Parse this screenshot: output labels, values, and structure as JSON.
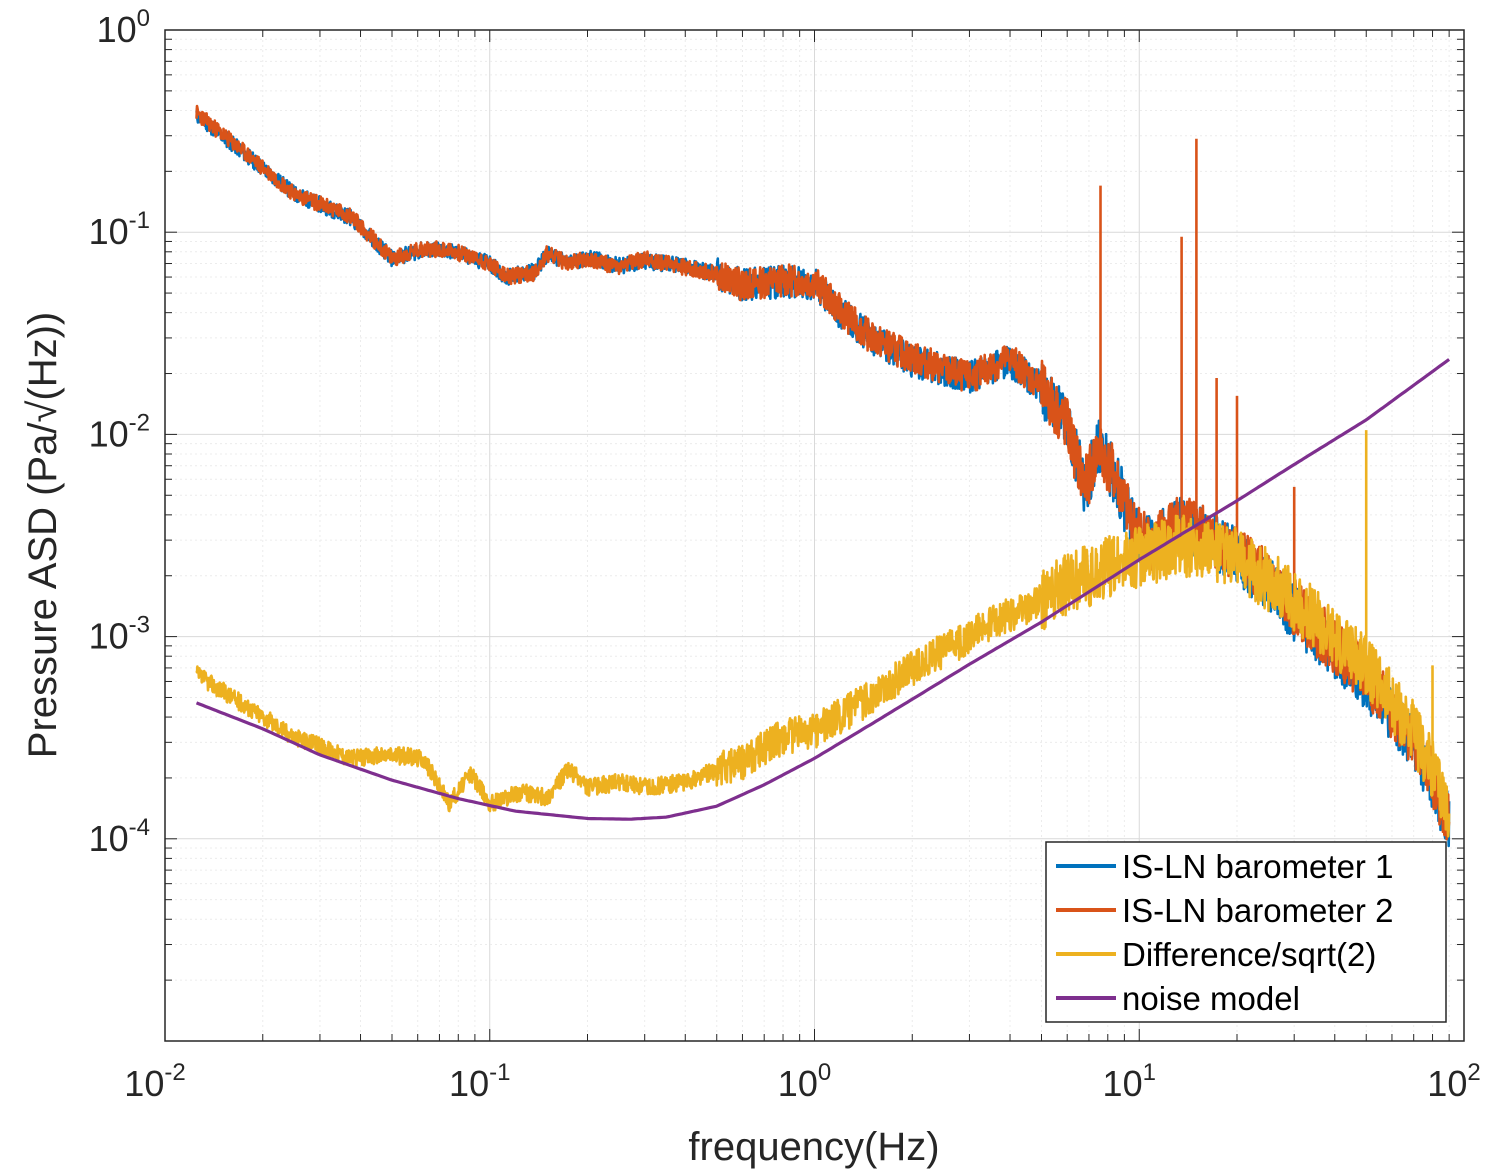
{
  "chart_data": {
    "type": "line",
    "title": "",
    "xlabel": "frequency(Hz)",
    "ylabel": "Pressure ASD (Pa/√(Hz))",
    "xscale": "log",
    "yscale": "log",
    "xlim": [
      0.01,
      100
    ],
    "ylim": [
      1e-05,
      1
    ],
    "grid": true,
    "minor_grid": true,
    "legend_position": "bottom-right",
    "x_ticks": [
      {
        "base": "10",
        "exp": "-2"
      },
      {
        "base": "10",
        "exp": "-1"
      },
      {
        "base": "10",
        "exp": "0"
      },
      {
        "base": "10",
        "exp": "1"
      },
      {
        "base": "10",
        "exp": "2"
      }
    ],
    "y_ticks": [
      {
        "value": 0.0001,
        "base": "10",
        "exp": "-4"
      },
      {
        "value": 0.001,
        "base": "10",
        "exp": "-3"
      },
      {
        "value": 0.01,
        "base": "10",
        "exp": "-2"
      },
      {
        "value": 0.1,
        "base": "10",
        "exp": "-1"
      },
      {
        "value": 1,
        "base": "10",
        "exp": "0"
      }
    ],
    "series": [
      {
        "name": "IS-LN barometer 1",
        "color": "#0072BD",
        "points": [
          [
            0.0125,
            0.38
          ],
          [
            0.025,
            0.155
          ],
          [
            0.0375,
            0.118
          ],
          [
            0.05,
            0.074
          ],
          [
            0.0625,
            0.082
          ],
          [
            0.075,
            0.081
          ],
          [
            0.1,
            0.07
          ],
          [
            0.1125,
            0.06
          ],
          [
            0.1375,
            0.064
          ],
          [
            0.15,
            0.078
          ],
          [
            0.175,
            0.07
          ],
          [
            0.2,
            0.075
          ],
          [
            0.25,
            0.068
          ],
          [
            0.3,
            0.072
          ],
          [
            0.4,
            0.068
          ],
          [
            0.5,
            0.062
          ],
          [
            0.6,
            0.055
          ],
          [
            0.8,
            0.057
          ],
          [
            1.0,
            0.056
          ],
          [
            1.2,
            0.04
          ],
          [
            1.5,
            0.03
          ],
          [
            2.0,
            0.023
          ],
          [
            2.5,
            0.021
          ],
          [
            3.0,
            0.019
          ],
          [
            4.0,
            0.023
          ],
          [
            5.0,
            0.017
          ],
          [
            6.0,
            0.011
          ],
          [
            6.8,
            0.0055
          ],
          [
            7.5,
            0.0085
          ],
          [
            8.5,
            0.006
          ],
          [
            9.5,
            0.0035
          ],
          [
            11,
            0.0028
          ],
          [
            13,
            0.0036
          ],
          [
            15,
            0.0033
          ],
          [
            20,
            0.0025
          ],
          [
            25,
            0.0018
          ],
          [
            30,
            0.0013
          ],
          [
            40,
            0.00085
          ],
          [
            50,
            0.0006
          ],
          [
            60,
            0.00042
          ],
          [
            70,
            0.0003
          ],
          [
            80,
            0.00019
          ],
          [
            90,
            0.00012
          ]
        ]
      },
      {
        "name": "IS-LN barometer 2",
        "color": "#D95319",
        "points": [
          [
            0.0125,
            0.39
          ],
          [
            0.025,
            0.155
          ],
          [
            0.0375,
            0.12
          ],
          [
            0.05,
            0.074
          ],
          [
            0.0625,
            0.083
          ],
          [
            0.075,
            0.082
          ],
          [
            0.1,
            0.07
          ],
          [
            0.1125,
            0.06
          ],
          [
            0.1375,
            0.063
          ],
          [
            0.15,
            0.078
          ],
          [
            0.175,
            0.07
          ],
          [
            0.2,
            0.074
          ],
          [
            0.25,
            0.067
          ],
          [
            0.3,
            0.074
          ],
          [
            0.4,
            0.067
          ],
          [
            0.5,
            0.062
          ],
          [
            0.6,
            0.055
          ],
          [
            0.8,
            0.058
          ],
          [
            1.0,
            0.057
          ],
          [
            1.2,
            0.041
          ],
          [
            1.5,
            0.03
          ],
          [
            2.0,
            0.024
          ],
          [
            2.5,
            0.021
          ],
          [
            3.0,
            0.019
          ],
          [
            4.0,
            0.024
          ],
          [
            5.0,
            0.017
          ],
          [
            6.0,
            0.011
          ],
          [
            6.8,
            0.0055
          ],
          [
            7.5,
            0.0085
          ],
          [
            8.5,
            0.006
          ],
          [
            9.5,
            0.0036
          ],
          [
            11,
            0.0029
          ],
          [
            13,
            0.0037
          ],
          [
            15,
            0.0034
          ],
          [
            20,
            0.0026
          ],
          [
            25,
            0.0019
          ],
          [
            30,
            0.0014
          ],
          [
            40,
            0.0009
          ],
          [
            50,
            0.00062
          ],
          [
            60,
            0.00043
          ],
          [
            70,
            0.00031
          ],
          [
            80,
            0.0002
          ],
          [
            90,
            0.00012
          ]
        ],
        "spikes": [
          [
            7.6,
            0.17
          ],
          [
            13.5,
            0.095
          ],
          [
            15.0,
            0.29
          ],
          [
            17.3,
            0.019
          ],
          [
            20.0,
            0.0155
          ],
          [
            30.0,
            0.0055
          ]
        ]
      },
      {
        "name": "Difference/sqrt(2)",
        "color": "#EDB120",
        "points": [
          [
            0.0125,
            0.00065
          ],
          [
            0.025,
            0.00032
          ],
          [
            0.0375,
            0.00025
          ],
          [
            0.05,
            0.00026
          ],
          [
            0.0625,
            0.00025
          ],
          [
            0.075,
            0.00015
          ],
          [
            0.0875,
            0.00021
          ],
          [
            0.1,
            0.00015
          ],
          [
            0.125,
            0.00017
          ],
          [
            0.15,
            0.00016
          ],
          [
            0.175,
            0.00022
          ],
          [
            0.2,
            0.00018
          ],
          [
            0.25,
            0.00019
          ],
          [
            0.3,
            0.00018
          ],
          [
            0.4,
            0.00019
          ],
          [
            0.5,
            0.00022
          ],
          [
            0.6,
            0.00024
          ],
          [
            0.8,
            0.00032
          ],
          [
            1.0,
            0.00034
          ],
          [
            1.5,
            0.0005
          ],
          [
            2.0,
            0.0007
          ],
          [
            3.0,
            0.001
          ],
          [
            4.0,
            0.0013
          ],
          [
            5.0,
            0.0015
          ],
          [
            6.0,
            0.0018
          ],
          [
            8.0,
            0.0022
          ],
          [
            10,
            0.0025
          ],
          [
            13,
            0.0028
          ],
          [
            15,
            0.0028
          ],
          [
            20,
            0.0024
          ],
          [
            25,
            0.0019
          ],
          [
            30,
            0.0015
          ],
          [
            40,
            0.001
          ],
          [
            50,
            0.0007
          ],
          [
            60,
            0.00048
          ],
          [
            70,
            0.00034
          ],
          [
            80,
            0.00022
          ],
          [
            90,
            0.00014
          ]
        ],
        "spikes": [
          [
            50,
            0.0105
          ],
          [
            80,
            0.00072
          ]
        ]
      },
      {
        "name": "noise model",
        "color": "#7E2F8E",
        "points": [
          [
            0.0125,
            0.00047
          ],
          [
            0.02,
            0.00035
          ],
          [
            0.03,
            0.00026
          ],
          [
            0.05,
            0.000195
          ],
          [
            0.08,
            0.000158
          ],
          [
            0.12,
            0.000137
          ],
          [
            0.2,
            0.000126
          ],
          [
            0.27,
            0.000125
          ],
          [
            0.35,
            0.000128
          ],
          [
            0.5,
            0.000145
          ],
          [
            0.7,
            0.000185
          ],
          [
            1.0,
            0.00025
          ],
          [
            1.5,
            0.00037
          ],
          [
            2.0,
            0.00049
          ],
          [
            3.0,
            0.00073
          ],
          [
            5.0,
            0.00118
          ],
          [
            10,
            0.0024
          ],
          [
            20,
            0.0047
          ],
          [
            30,
            0.0071
          ],
          [
            50,
            0.0118
          ],
          [
            90,
            0.0235
          ]
        ]
      }
    ]
  }
}
